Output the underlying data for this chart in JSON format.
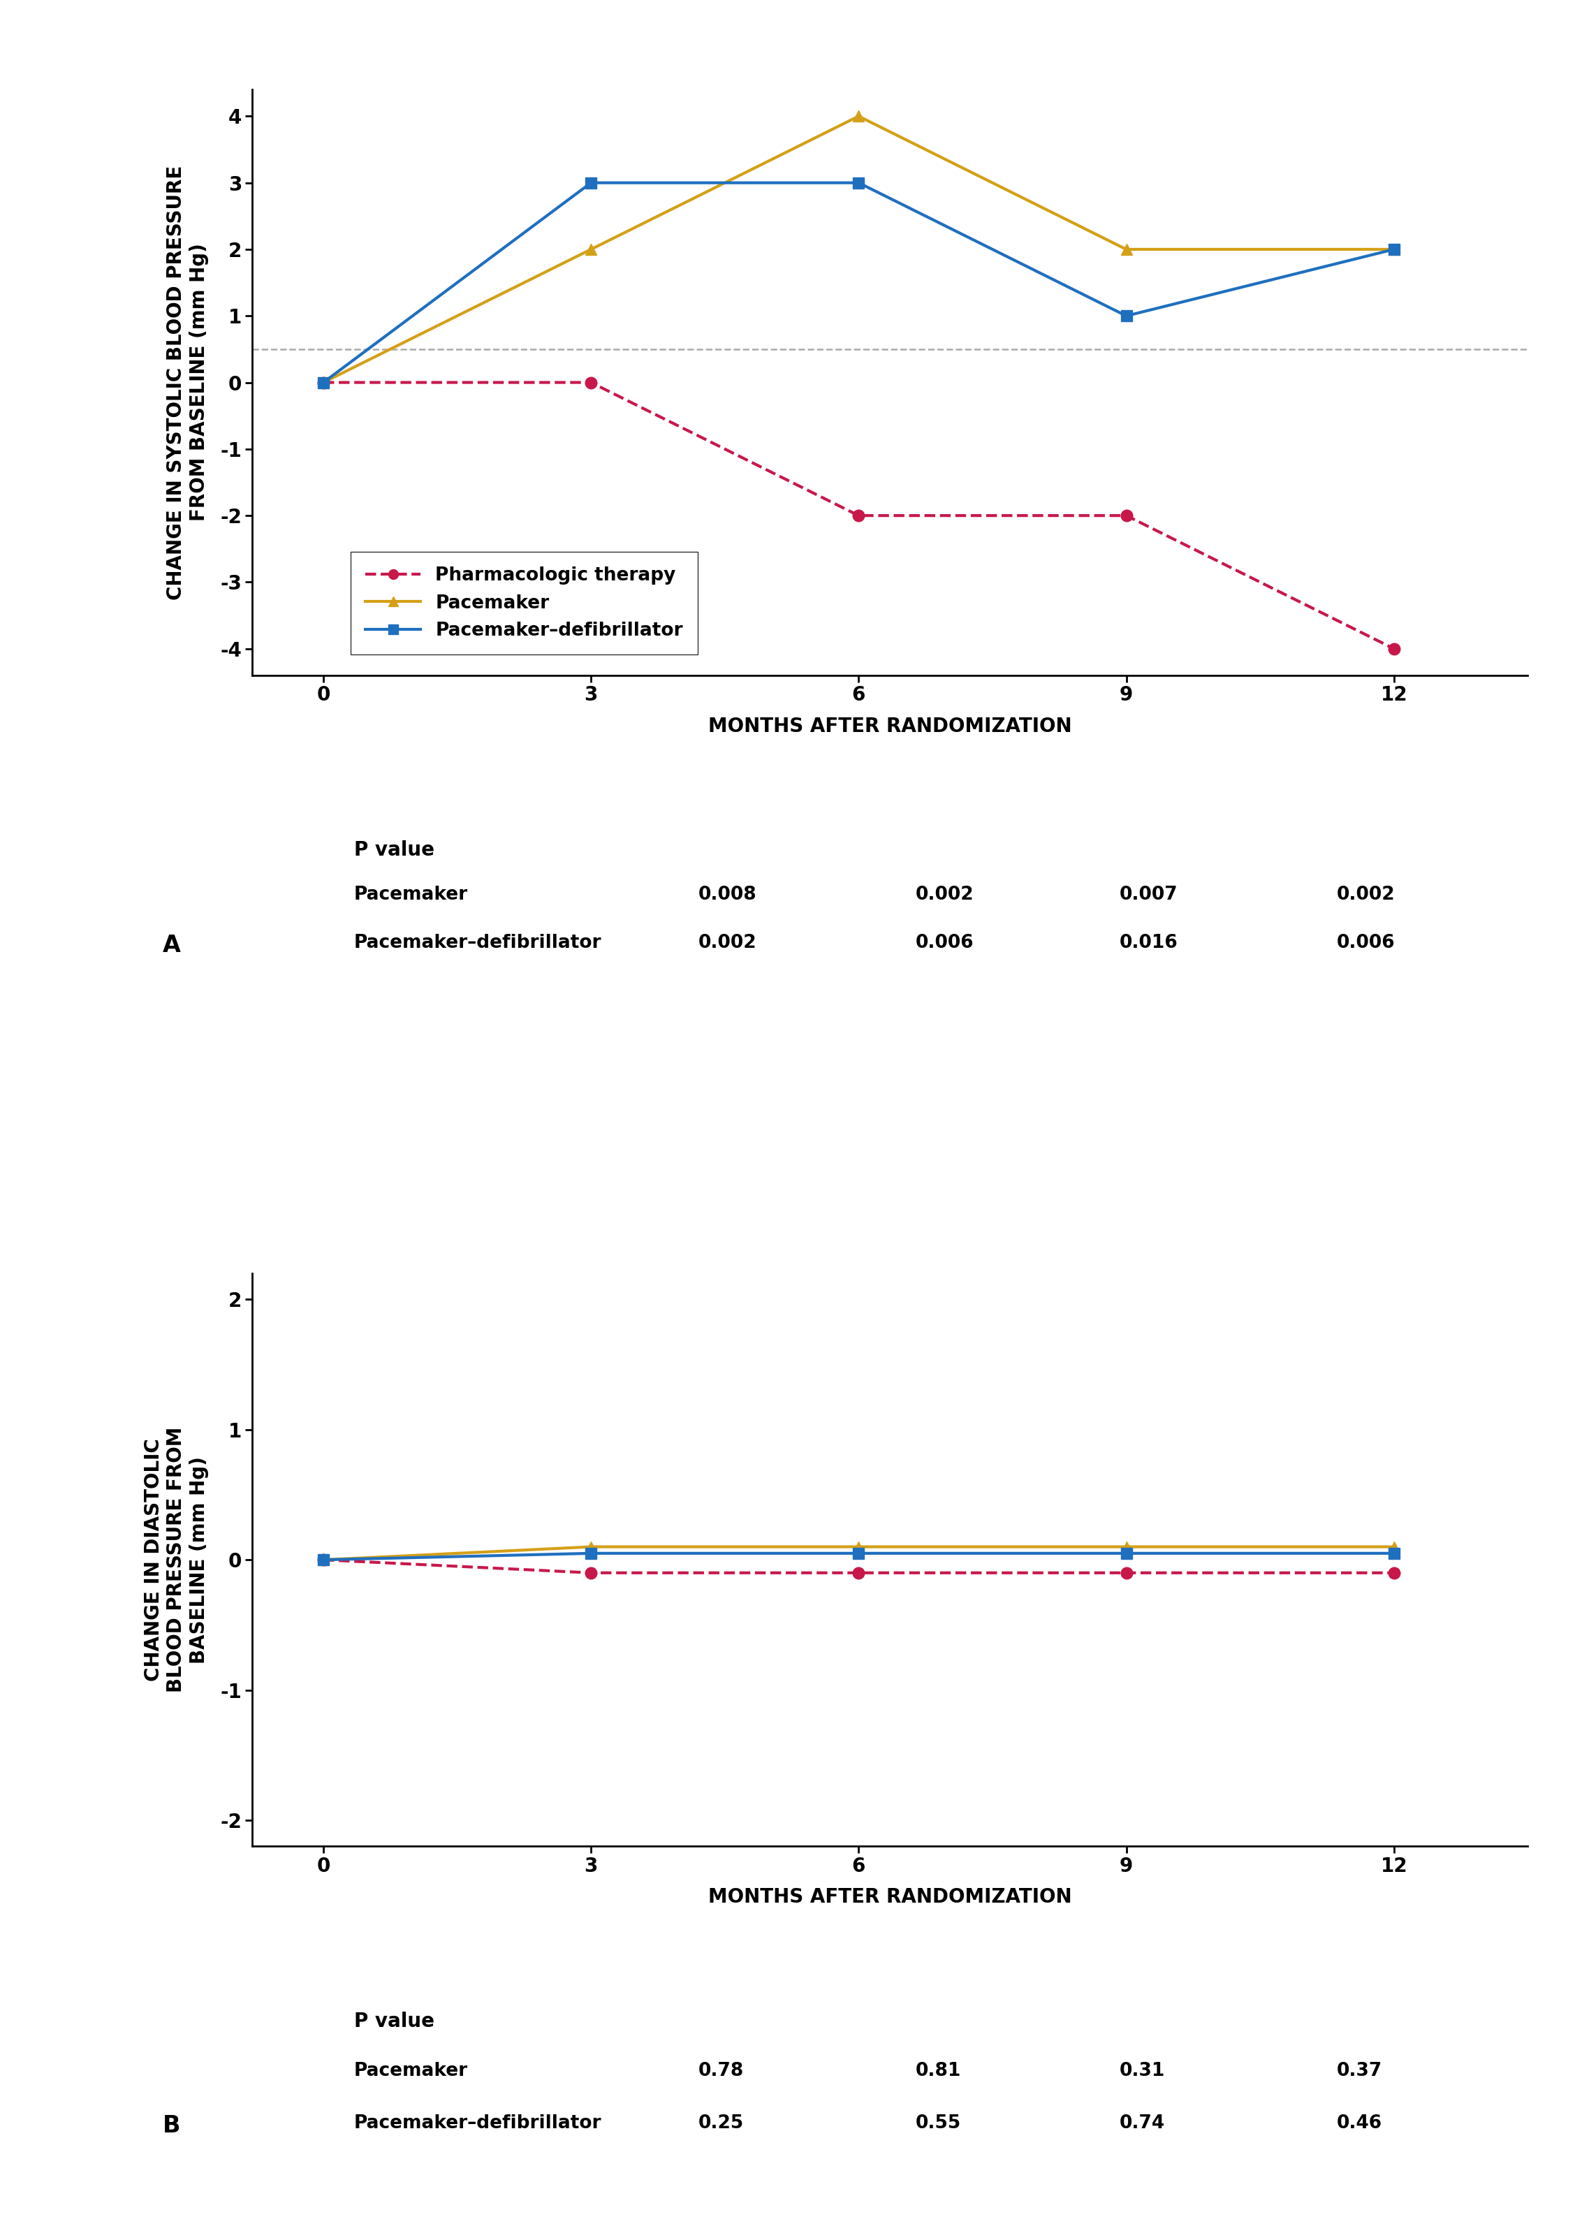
{
  "months": [
    0,
    3,
    6,
    9,
    12
  ],
  "systolic": {
    "pharma": [
      0,
      0,
      -2,
      -2,
      -4
    ],
    "pacemaker": [
      0,
      2,
      4,
      2,
      2
    ],
    "pacer_defib": [
      0,
      3,
      3,
      1,
      2
    ],
    "ylim": [
      -4.4,
      4.4
    ],
    "yticks": [
      -4,
      -3,
      -2,
      -1,
      0,
      1,
      2,
      3,
      4
    ],
    "dashed_line_y": 0.5,
    "ylabel": "CHANGE IN SYSTOLIC BLOOD PRESSURE\nFROM BASELINE (mm Hg)"
  },
  "diastolic": {
    "pharma": [
      0,
      -0.1,
      -0.1,
      -0.1,
      -0.1
    ],
    "pacemaker": [
      0,
      0.1,
      0.1,
      0.1,
      0.1
    ],
    "pacer_defib": [
      0,
      0.05,
      0.05,
      0.05,
      0.05
    ],
    "ylim": [
      -2.2,
      2.2
    ],
    "yticks": [
      -2,
      -1,
      0,
      1,
      2
    ],
    "ylabel": "CHANGE IN DIASTOLIC\nBLOOD PRESSURE FROM\nBASELINE (mm Hg)"
  },
  "xlabel": "MONTHS AFTER RANDOMIZATION",
  "xticks": [
    0,
    3,
    6,
    9,
    12
  ],
  "colors": {
    "pharma": "#C8184A",
    "pacemaker": "#D4A017",
    "pacer_defib": "#1F6FBF"
  },
  "legend_labels": [
    "Pharmacologic therapy",
    "Pacemaker",
    "Pacemaker–defibrillator"
  ],
  "p_value_header": "P value",
  "p_values_A": {
    "pacemaker_label": "Pacemaker",
    "pacer_defib_label": "Pacemaker–defibrillator",
    "pacemaker_vals": [
      "0.008",
      "0.002",
      "0.007",
      "0.002"
    ],
    "pacer_defib_vals": [
      "0.002",
      "0.006",
      "0.016",
      "0.006"
    ]
  },
  "p_values_B": {
    "pacemaker_label": "Pacemaker",
    "pacer_defib_label": "Pacemaker–defibrillator",
    "pacemaker_vals": [
      "0.78",
      "0.81",
      "0.31",
      "0.37"
    ],
    "pacer_defib_vals": [
      "0.25",
      "0.55",
      "0.74",
      "0.46"
    ]
  },
  "panel_A_label": "A",
  "panel_B_label": "B",
  "bg_color": "#FFFFFF",
  "font_size_axis_label": 20,
  "font_size_tick": 20,
  "font_size_legend": 19,
  "font_size_pvalue": 19,
  "font_size_pvalue_header": 20,
  "line_width": 3.0,
  "marker_size": 12
}
